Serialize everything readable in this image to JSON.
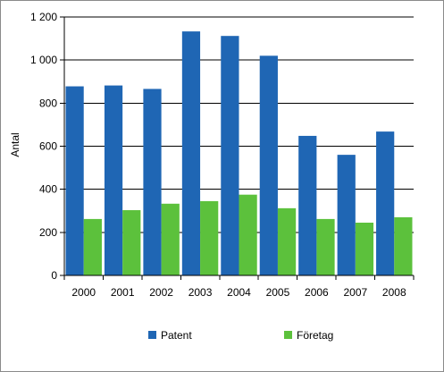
{
  "chart_data": {
    "type": "bar",
    "title": "",
    "xlabel": "",
    "ylabel": "Antal",
    "categories": [
      "2000",
      "2001",
      "2002",
      "2003",
      "2004",
      "2005",
      "2006",
      "2007",
      "2008"
    ],
    "series": [
      {
        "name": "Patent",
        "color": "#1f66b4",
        "values": [
          878,
          882,
          866,
          1133,
          1112,
          1020,
          648,
          560,
          668
        ]
      },
      {
        "name": "Företag",
        "color": "#5cc13c",
        "values": [
          262,
          303,
          333,
          345,
          375,
          312,
          262,
          245,
          270
        ]
      }
    ],
    "ylim": [
      0,
      1200
    ],
    "yticks": [
      0,
      200,
      400,
      600,
      800,
      1000,
      1200
    ],
    "ytick_labels": [
      "0",
      "200",
      "400",
      "600",
      "800",
      "1 000",
      "1 200"
    ],
    "grid": true,
    "legend_position": "bottom"
  }
}
